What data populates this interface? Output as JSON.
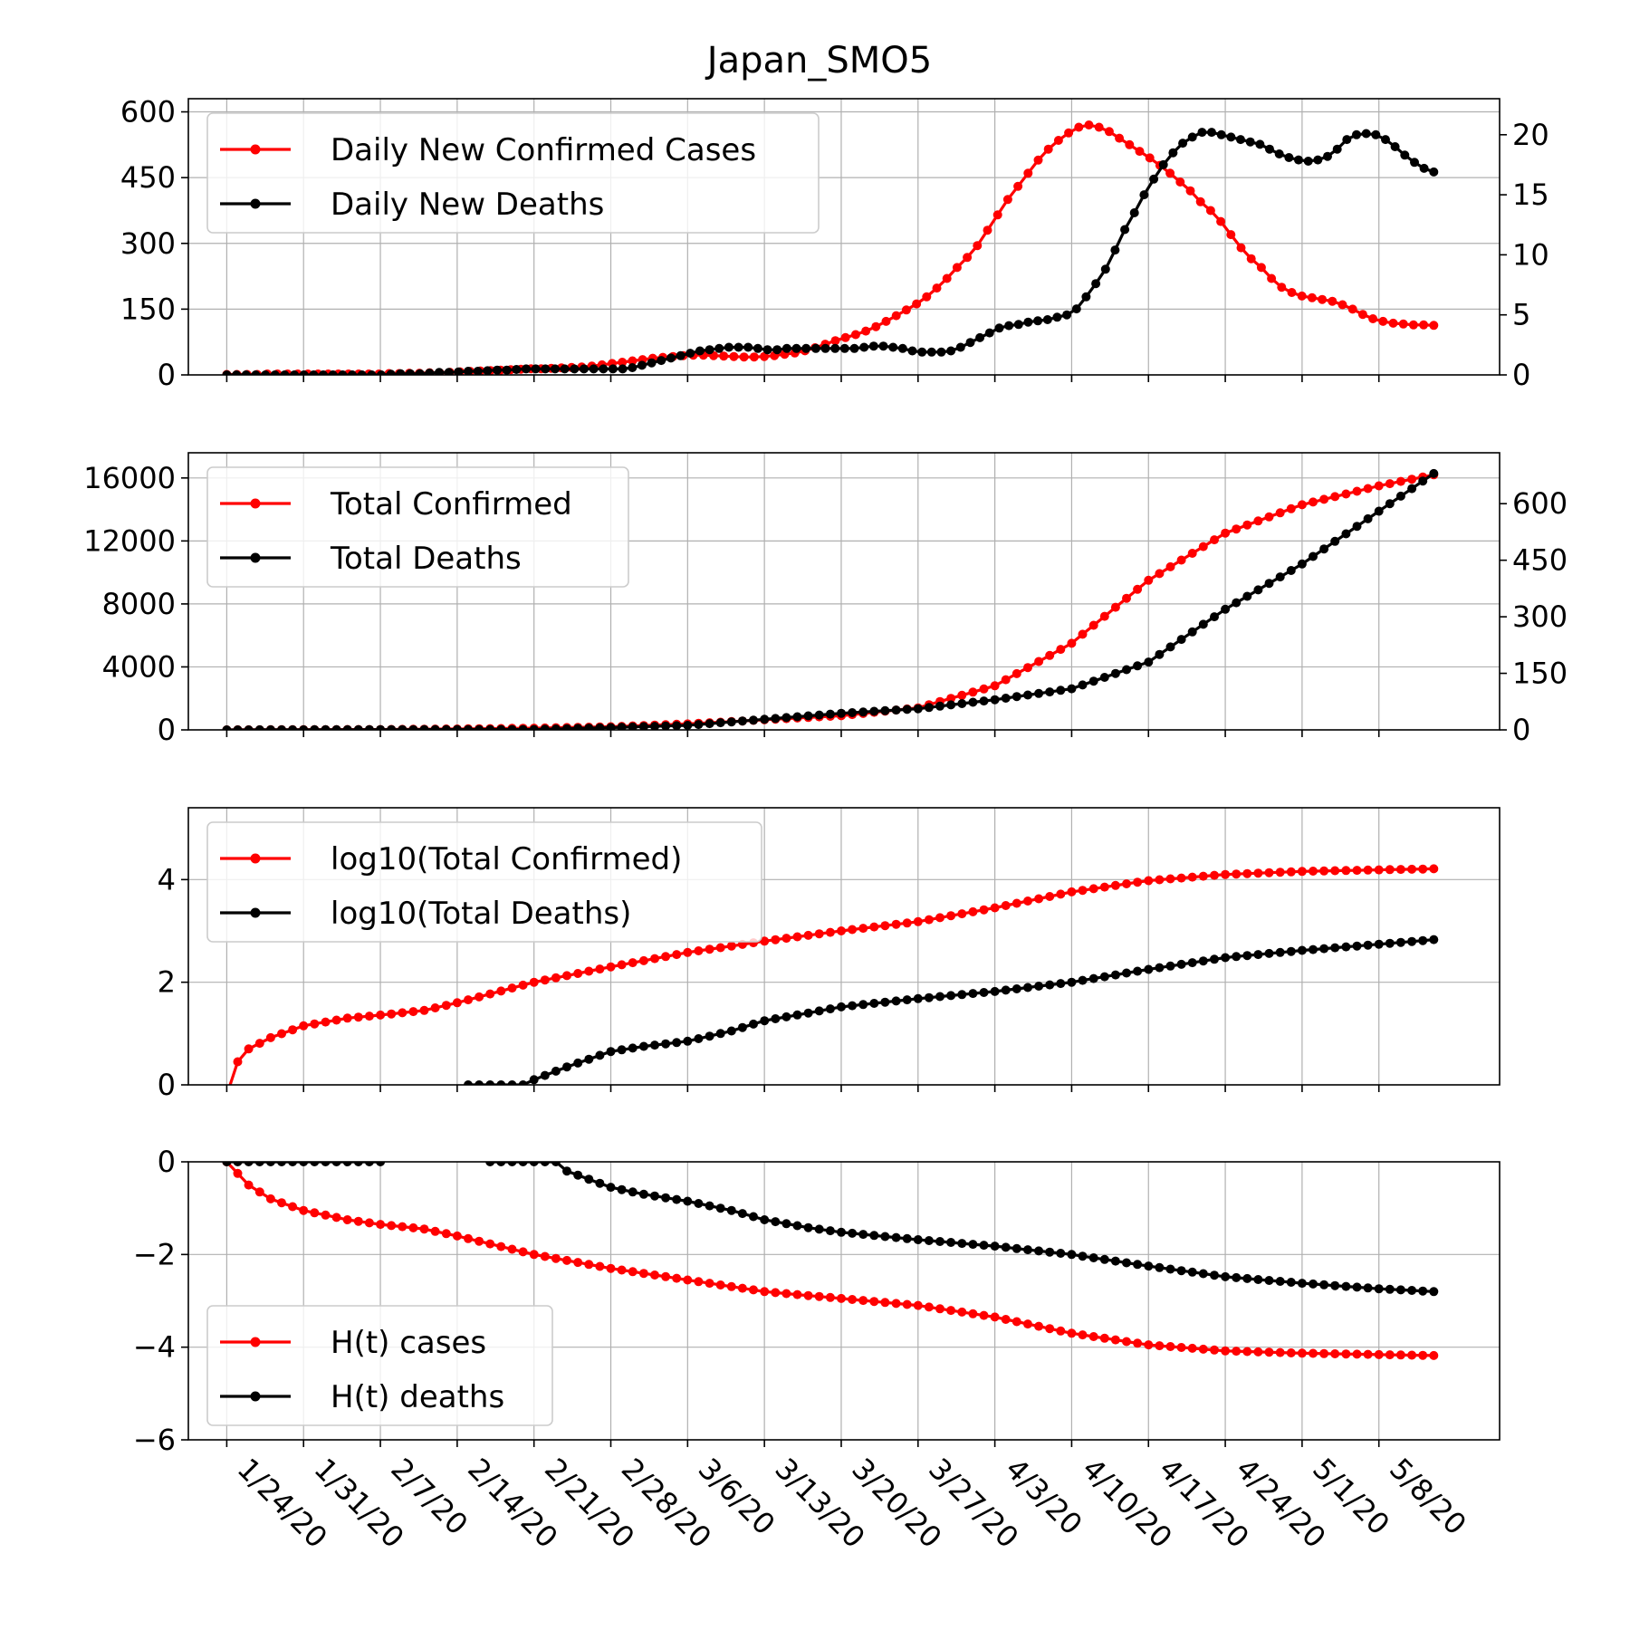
{
  "title": "Japan_SMO5",
  "x_dates": {
    "start": "1/22/20",
    "num_days": 113,
    "tick_labels": [
      "1/24/20",
      "1/31/20",
      "2/7/20",
      "2/14/20",
      "2/21/20",
      "2/28/20",
      "3/6/20",
      "3/13/20",
      "3/20/20",
      "3/27/20",
      "4/3/20",
      "4/10/20",
      "4/17/20",
      "4/24/20",
      "5/1/20",
      "5/8/20"
    ],
    "tick_day_index": [
      2,
      9,
      16,
      23,
      30,
      37,
      44,
      51,
      58,
      65,
      72,
      79,
      86,
      93,
      100,
      107
    ]
  },
  "colors": {
    "red": "#ff0000",
    "black": "#000000"
  },
  "chart_data": [
    {
      "type": "line",
      "name": "daily",
      "legend_position": "upper-left",
      "left_axis": {
        "ylim": [
          0,
          630
        ],
        "ticks": [
          0,
          150,
          300,
          450,
          600
        ],
        "tick_labels": [
          "0",
          "150",
          "300",
          "450",
          "600"
        ]
      },
      "right_axis": {
        "ylim": [
          0,
          23
        ],
        "ticks": [
          0,
          5,
          10,
          15,
          20
        ],
        "tick_labels": [
          "0",
          "5",
          "10",
          "15",
          "20"
        ]
      },
      "series": [
        {
          "name": "Daily New Confirmed Cases",
          "color": "red",
          "axis": "left",
          "start_day": 2,
          "values": [
            1,
            1,
            1,
            1,
            2,
            2,
            2,
            2,
            2,
            2,
            2,
            2,
            2,
            2,
            2,
            2,
            3,
            3,
            4,
            4,
            5,
            5,
            6,
            7,
            8,
            9,
            10,
            11,
            12,
            13,
            14,
            14,
            15,
            16,
            17,
            18,
            20,
            23,
            26,
            29,
            32,
            35,
            38,
            40,
            42,
            44,
            45,
            45,
            44,
            43,
            42,
            41,
            41,
            42,
            44,
            47,
            50,
            55,
            62,
            70,
            78,
            85,
            92,
            100,
            110,
            122,
            135,
            148,
            162,
            178,
            198,
            220,
            245,
            268,
            295,
            330,
            365,
            400,
            430,
            460,
            490,
            515,
            535,
            552,
            565,
            570,
            565,
            555,
            540,
            525,
            510,
            495,
            478,
            460,
            440,
            420,
            395,
            375,
            350,
            320,
            290,
            265,
            245,
            220,
            200,
            188,
            180,
            176,
            172,
            168,
            160,
            150,
            138,
            128,
            122,
            118,
            116,
            114,
            114,
            113
          ]
        },
        {
          "name": "Daily New Deaths",
          "color": "black",
          "axis": "right",
          "start_day": 2,
          "values": [
            0,
            0,
            0,
            0,
            0,
            0,
            0,
            0,
            0,
            0,
            0,
            0,
            0,
            0,
            0,
            0,
            0,
            0.05,
            0.1,
            0.1,
            0.1,
            0.15,
            0.2,
            0.2,
            0.25,
            0.3,
            0.3,
            0.35,
            0.4,
            0.4,
            0.45,
            0.5,
            0.5,
            0.5,
            0.5,
            0.5,
            0.5,
            0.5,
            0.5,
            0.5,
            0.5,
            0.5,
            0.6,
            0.8,
            1.0,
            1.2,
            1.4,
            1.6,
            1.8,
            2.0,
            2.1,
            2.2,
            2.3,
            2.3,
            2.3,
            2.2,
            2.1,
            2.1,
            2.2,
            2.2,
            2.2,
            2.2,
            2.2,
            2.2,
            2.2,
            2.2,
            2.3,
            2.4,
            2.4,
            2.3,
            2.2,
            2.0,
            1.9,
            1.9,
            1.9,
            2.0,
            2.3,
            2.7,
            3.1,
            3.5,
            3.9,
            4.1,
            4.2,
            4.4,
            4.5,
            4.6,
            4.8,
            5.0,
            5.5,
            6.5,
            7.6,
            8.8,
            10.4,
            12.1,
            13.5,
            15.0,
            16.3,
            17.5,
            18.5,
            19.3,
            19.8,
            20.2,
            20.2,
            20.0,
            19.8,
            19.6,
            19.4,
            19.2,
            18.8,
            18.4,
            18.1,
            17.9,
            17.8,
            17.9,
            18.2,
            18.8,
            19.6,
            20.0,
            20.1,
            20.0,
            19.6,
            19.0,
            18.3,
            17.7,
            17.2,
            16.9
          ]
        }
      ]
    },
    {
      "type": "line",
      "name": "totals",
      "legend_position": "upper-left",
      "left_axis": {
        "ylim": [
          0,
          17600
        ],
        "ticks": [
          0,
          4000,
          8000,
          12000,
          16000
        ],
        "tick_labels": [
          "0",
          "4000",
          "8000",
          "12000",
          "16000"
        ]
      },
      "right_axis": {
        "ylim": [
          0,
          735
        ],
        "ticks": [
          0,
          150,
          300,
          450,
          600
        ],
        "tick_labels": [
          "0",
          "150",
          "300",
          "450",
          "600"
        ]
      },
      "series": [
        {
          "name": "Total Confirmed",
          "color": "red",
          "axis": "left",
          "anchors": [
            [
              2,
              1
            ],
            [
              9,
              15
            ],
            [
              16,
              25
            ],
            [
              23,
              60
            ],
            [
              30,
              110
            ],
            [
              37,
              200
            ],
            [
              44,
              380
            ],
            [
              51,
              640
            ],
            [
              58,
              900
            ],
            [
              65,
              1400
            ],
            [
              72,
              2800
            ],
            [
              79,
              5500
            ],
            [
              86,
              9500
            ],
            [
              93,
              12500
            ],
            [
              100,
              14300
            ],
            [
              107,
              15500
            ],
            [
              112,
              16200
            ]
          ]
        },
        {
          "name": "Total Deaths",
          "color": "black",
          "axis": "right",
          "anchors": [
            [
              2,
              0
            ],
            [
              23,
              1
            ],
            [
              30,
              1
            ],
            [
              37,
              6
            ],
            [
              44,
              12
            ],
            [
              51,
              28
            ],
            [
              58,
              44
            ],
            [
              65,
              56
            ],
            [
              72,
              80
            ],
            [
              79,
              109
            ],
            [
              86,
              180
            ],
            [
              93,
              320
            ],
            [
              100,
              440
            ],
            [
              107,
              580
            ],
            [
              112,
              680
            ]
          ]
        }
      ]
    },
    {
      "type": "line",
      "name": "log10",
      "legend_position": "upper-left",
      "left_axis": {
        "ylim": [
          0,
          5.4
        ],
        "ticks": [
          0,
          2,
          4
        ],
        "tick_labels": [
          "0",
          "2",
          "4"
        ]
      },
      "series": [
        {
          "name": "log10(Total Confirmed)",
          "color": "red",
          "axis": "left",
          "anchors": [
            [
              2,
              -0.2
            ],
            [
              3,
              0.45
            ],
            [
              4,
              0.7
            ],
            [
              6,
              0.92
            ],
            [
              9,
              1.15
            ],
            [
              13,
              1.3
            ],
            [
              16,
              1.36
            ],
            [
              20,
              1.45
            ],
            [
              23,
              1.6
            ],
            [
              30,
              2.0
            ],
            [
              37,
              2.3
            ],
            [
              44,
              2.58
            ],
            [
              51,
              2.8
            ],
            [
              58,
              3.0
            ],
            [
              65,
              3.18
            ],
            [
              72,
              3.45
            ],
            [
              79,
              3.76
            ],
            [
              86,
              3.98
            ],
            [
              93,
              4.1
            ],
            [
              100,
              4.16
            ],
            [
              107,
              4.19
            ],
            [
              112,
              4.21
            ]
          ]
        },
        {
          "name": "log10(Total Deaths)",
          "color": "black",
          "axis": "left",
          "anchors": [
            [
              22,
              -0.2
            ],
            [
              24,
              0
            ],
            [
              29,
              0
            ],
            [
              30,
              0.1
            ],
            [
              33,
              0.35
            ],
            [
              37,
              0.65
            ],
            [
              40,
              0.75
            ],
            [
              44,
              0.85
            ],
            [
              48,
              1.05
            ],
            [
              51,
              1.25
            ],
            [
              55,
              1.4
            ],
            [
              58,
              1.52
            ],
            [
              65,
              1.68
            ],
            [
              72,
              1.82
            ],
            [
              79,
              2.0
            ],
            [
              86,
              2.25
            ],
            [
              93,
              2.48
            ],
            [
              100,
              2.62
            ],
            [
              107,
              2.74
            ],
            [
              112,
              2.83
            ]
          ]
        }
      ]
    },
    {
      "type": "line",
      "name": "entropy",
      "legend_position": "lower-left",
      "left_axis": {
        "ylim": [
          -6,
          0
        ],
        "ticks": [
          0,
          -2,
          -4,
          -6
        ],
        "tick_labels": [
          "0",
          "−2",
          "−4",
          "−6"
        ]
      },
      "series": [
        {
          "name": "H(t) cases",
          "color": "red",
          "axis": "left",
          "anchors": [
            [
              2,
              0
            ],
            [
              4,
              -0.5
            ],
            [
              6,
              -0.8
            ],
            [
              9,
              -1.05
            ],
            [
              13,
              -1.25
            ],
            [
              16,
              -1.35
            ],
            [
              20,
              -1.45
            ],
            [
              23,
              -1.6
            ],
            [
              30,
              -2.0
            ],
            [
              37,
              -2.3
            ],
            [
              44,
              -2.55
            ],
            [
              51,
              -2.8
            ],
            [
              58,
              -2.95
            ],
            [
              65,
              -3.1
            ],
            [
              72,
              -3.35
            ],
            [
              79,
              -3.7
            ],
            [
              86,
              -3.95
            ],
            [
              93,
              -4.08
            ],
            [
              100,
              -4.13
            ],
            [
              107,
              -4.16
            ],
            [
              112,
              -4.18
            ]
          ]
        },
        {
          "name": "H(t) deaths",
          "color": "black",
          "axis": "left",
          "segments": [
            [
              [
                2,
                0
              ],
              [
                16,
                0
              ]
            ],
            [
              [
                26,
                0
              ],
              [
                32,
                0
              ],
              [
                33,
                -0.2
              ],
              [
                37,
                -0.55
              ],
              [
                40,
                -0.7
              ],
              [
                44,
                -0.85
              ],
              [
                48,
                -1.05
              ],
              [
                51,
                -1.25
              ],
              [
                55,
                -1.42
              ],
              [
                58,
                -1.52
              ],
              [
                65,
                -1.68
              ],
              [
                72,
                -1.82
              ],
              [
                79,
                -2.0
              ],
              [
                86,
                -2.25
              ],
              [
                93,
                -2.48
              ],
              [
                100,
                -2.62
              ],
              [
                107,
                -2.74
              ],
              [
                112,
                -2.8
              ]
            ]
          ]
        }
      ]
    }
  ]
}
